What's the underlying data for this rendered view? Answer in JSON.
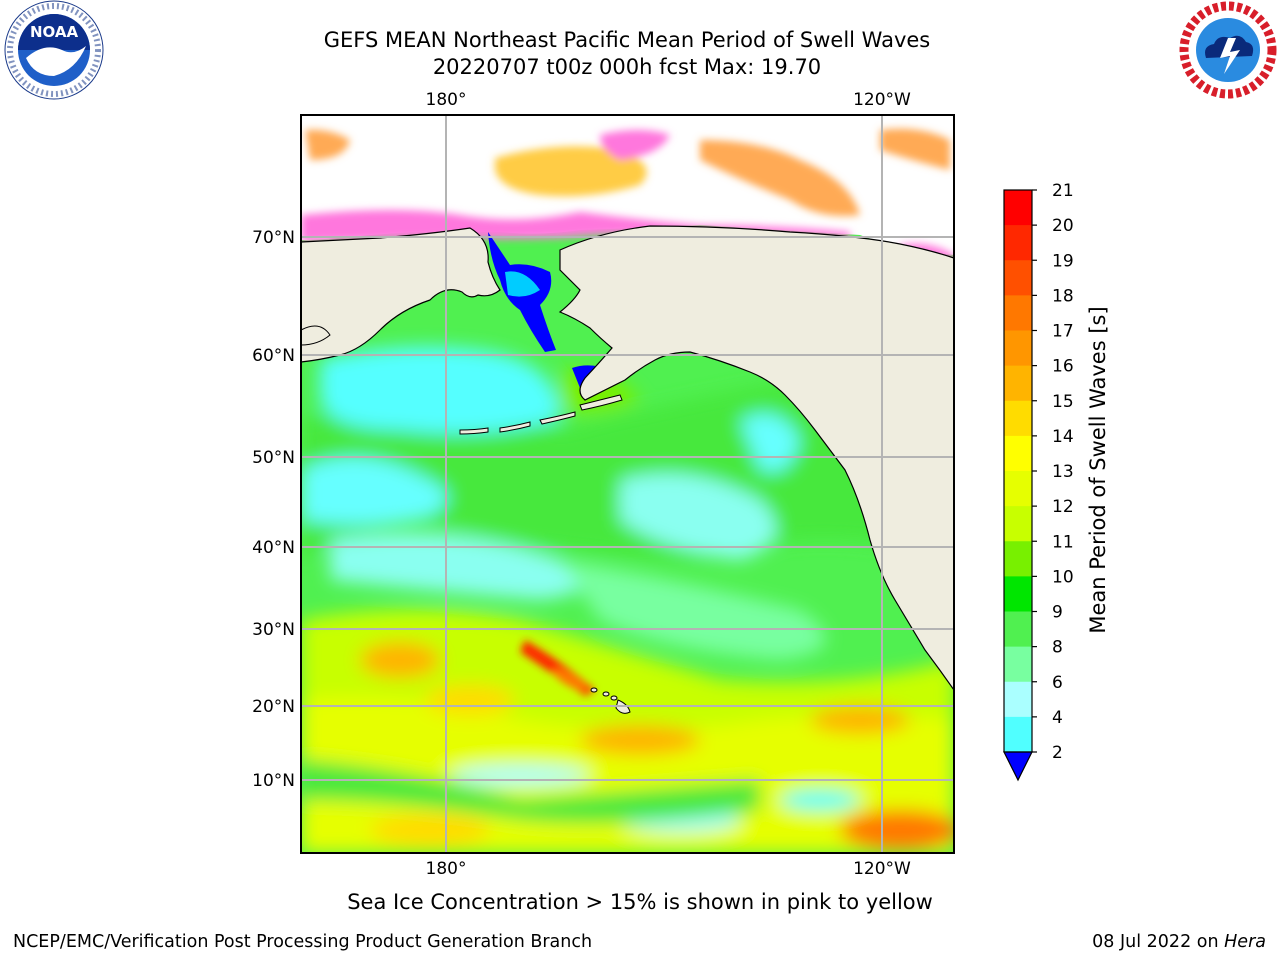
{
  "header": {
    "title_line1": "GEFS MEAN Northeast Pacific Mean Period of Swell Waves",
    "title_line2": "20220707 t00z 000h fcst   Max: 19.70"
  },
  "logos": {
    "left": "NOAA",
    "left_ring": "NATIONAL OCEANIC AND ATMOSPHERIC ADMINISTRATION · U.S. DEPARTMENT OF COMMERCE",
    "right_ring": "NATIONAL WEATHER SERVICE"
  },
  "map": {
    "lon_labels_top": [
      "180°",
      "120°W"
    ],
    "lon_labels_bottom": [
      "180°",
      "120°W"
    ],
    "lat_labels": [
      "70°N",
      "60°N",
      "50°N",
      "40°N",
      "30°N",
      "20°N",
      "10°N"
    ],
    "land_color": "#efeddf",
    "ice_colors": [
      "#ff33ff",
      "#ff77dd",
      "#ffaa55",
      "#ffcc44"
    ]
  },
  "colorbar": {
    "label": "Mean Period of Swell Waves [s]",
    "ticks": [
      "21",
      "20",
      "19",
      "18",
      "17",
      "16",
      "15",
      "14",
      "13",
      "12",
      "11",
      "10",
      "9",
      "8",
      "6",
      "4",
      "2"
    ],
    "colors_top_to_bottom": [
      "#ff0000",
      "#ff2800",
      "#ff5000",
      "#ff7800",
      "#ff9600",
      "#ffb400",
      "#ffdc00",
      "#ffff00",
      "#e6ff00",
      "#c8ff00",
      "#78f000",
      "#00e600",
      "#50f050",
      "#78ffa0",
      "#aaffff",
      "#50ffff",
      "#00ffff",
      "#0096ff",
      "#0000ff"
    ]
  },
  "footer": {
    "note": "Sea Ice Concentration > 15% is shown in pink to yellow",
    "left": "NCEP/EMC/Verification Post Processing Product Generation Branch",
    "right_date": "08 Jul 2022 on",
    "right_host": "Hera"
  }
}
